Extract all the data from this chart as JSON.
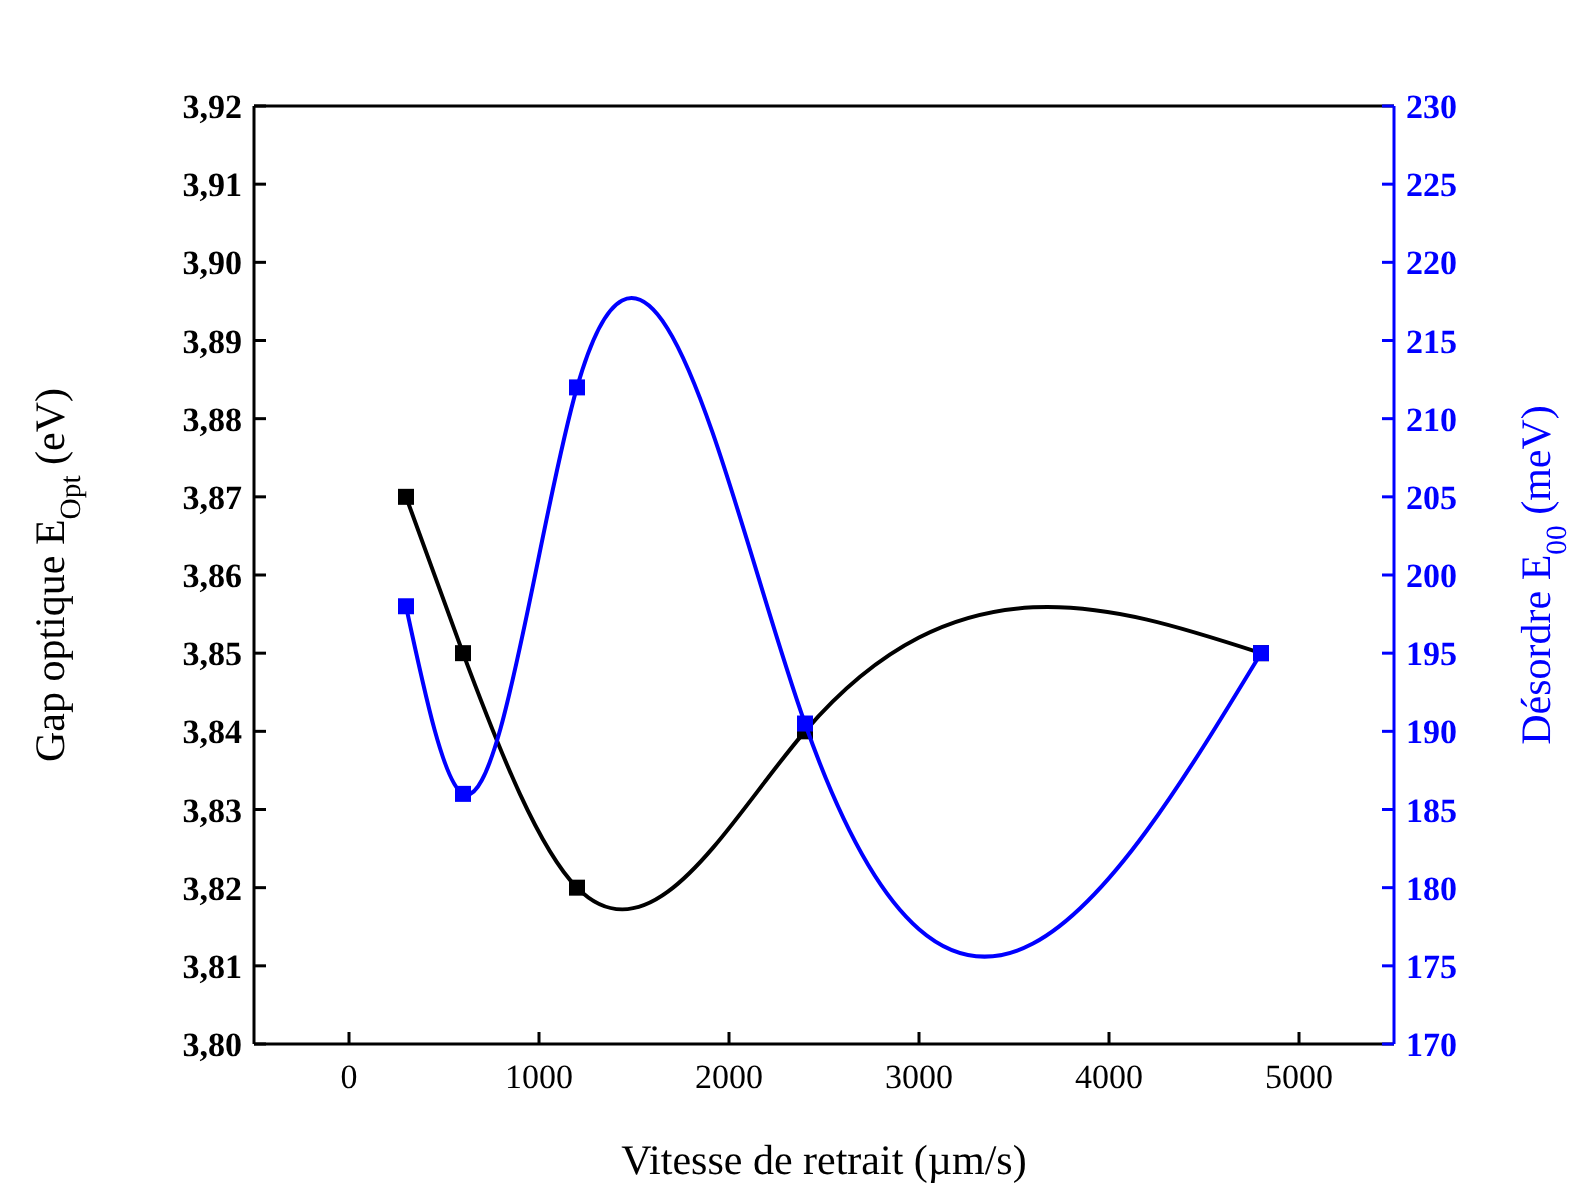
{
  "chart_data": {
    "type": "line",
    "xlabel": "Vitesse de retrait (µm/s)",
    "ylabel": "Gap optique E$_{Opt}$ (eV)",
    "y2label": "Désordre E$_{00}$ (meV)",
    "x": [
      300,
      600,
      1200,
      2400,
      4800
    ],
    "series": [
      {
        "color": "#000000",
        "values": [
          3.87,
          3.85,
          3.82,
          3.84,
          3.85
        ]
      },
      {
        "color": "#0000ff",
        "axis": "y2",
        "values": [
          198,
          186,
          212,
          190.5,
          195
        ]
      }
    ],
    "marker": "square",
    "line_style": "solid",
    "grid": false,
    "xlim": [
      -500,
      5500
    ],
    "xticks": [
      0,
      1000,
      2000,
      3000,
      4000,
      5000
    ],
    "ylim": [
      3.8,
      3.92
    ],
    "yticks": [
      {
        "value": 3.8,
        "label": "3,80"
      },
      {
        "value": 3.81,
        "label": "3,81"
      },
      {
        "value": 3.82,
        "label": "3,82"
      },
      {
        "value": 3.83,
        "label": "3,83"
      },
      {
        "value": 3.84,
        "label": "3,84"
      },
      {
        "value": 3.85,
        "label": "3,85"
      },
      {
        "value": 3.86,
        "label": "3,86"
      },
      {
        "value": 3.87,
        "label": "3,87"
      },
      {
        "value": 3.88,
        "label": "3,88"
      },
      {
        "value": 3.89,
        "label": "3,89"
      },
      {
        "value": 3.9,
        "label": "3,90"
      },
      {
        "value": 3.91,
        "label": "3,91"
      },
      {
        "value": 3.92,
        "label": "3,92"
      }
    ],
    "y2lim": [
      170,
      230
    ],
    "y2ticks": [
      170,
      175,
      180,
      185,
      190,
      195,
      200,
      205,
      210,
      215,
      220,
      225,
      230
    ]
  }
}
